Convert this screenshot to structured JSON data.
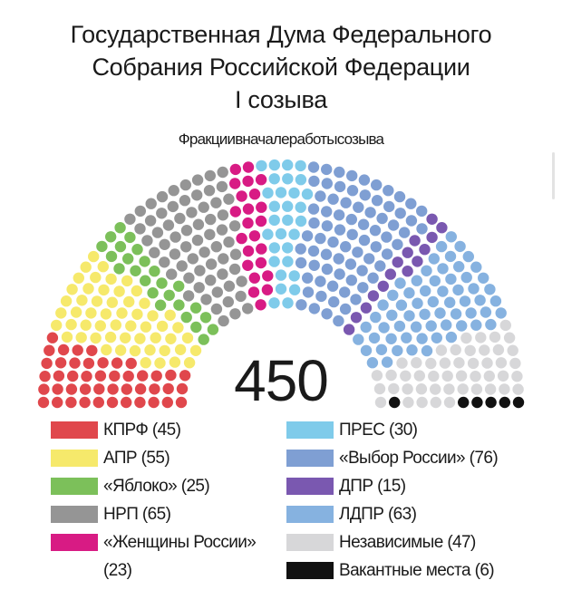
{
  "title_lines": [
    "Государственная Дума Федерального",
    "Собрания Российской Федерации",
    "I созыва"
  ],
  "subtitle": "Фракциивначалеработысозыва",
  "total_label": "450",
  "chart_data": {
    "type": "parliament",
    "title": "Государственная Дума Федерального Собрания Российской Федерации I созыва",
    "subtitle": "Фракциивначалеработысозыва",
    "total": 450,
    "series": [
      {
        "name": "КПРФ",
        "value": 45,
        "color": "#e0474c",
        "label": "КПРФ (45)"
      },
      {
        "name": "АПР",
        "value": 55,
        "color": "#f6e96b",
        "label": "АПР (55)"
      },
      {
        "name": "«Яблоко»",
        "value": 25,
        "color": "#7cc05a",
        "label": "«Яблоко» (25)"
      },
      {
        "name": "НРП",
        "value": 65,
        "color": "#959595",
        "label": "НРП (65)"
      },
      {
        "name": "«Женщины России»",
        "value": 23,
        "color": "#d81b84",
        "label": "«Женщины России»",
        "label2": "(23)"
      },
      {
        "name": "ПРЕС",
        "value": 30,
        "color": "#7fcbea",
        "label": "ПРЕС (30)"
      },
      {
        "name": "«Выбор России»",
        "value": 76,
        "color": "#7f9fd3",
        "label": "«Выбор России» (76)"
      },
      {
        "name": "ДПР",
        "value": 15,
        "color": "#7a58b0",
        "label": "ДПР (15)"
      },
      {
        "name": "ЛДПР",
        "value": 63,
        "color": "#86b2e0",
        "label": "ЛДПР (63)"
      },
      {
        "name": "Независимые",
        "value": 47,
        "color": "#d7d7d9",
        "label": "Независимые (47)"
      },
      {
        "name": "Вакантные места",
        "value": 6,
        "color": "#111111",
        "label": "Вакантные места (6)"
      }
    ],
    "legend_placement": "bottom"
  }
}
